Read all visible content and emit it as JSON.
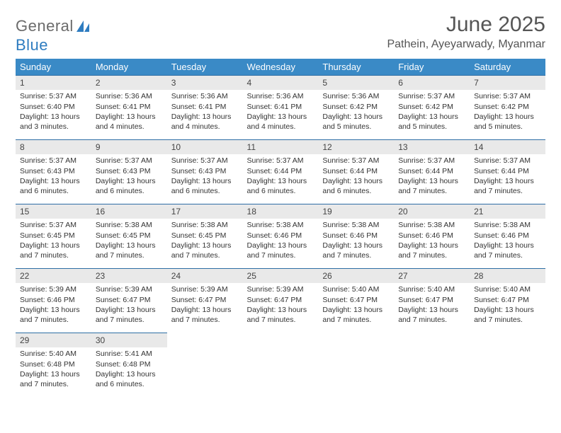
{
  "logo": {
    "word1": "General",
    "word2": "Blue"
  },
  "title": "June 2025",
  "location": "Pathein, Ayeyarwady, Myanmar",
  "colors": {
    "header_bg": "#3a8ac6",
    "header_text": "#ffffff",
    "daynum_bg": "#e9e9e9",
    "daynum_border": "#2e6ea5",
    "body_text": "#333333",
    "title_text": "#555555",
    "logo_gray": "#6b6b6b",
    "logo_blue": "#2e7cc0"
  },
  "weekdays": [
    "Sunday",
    "Monday",
    "Tuesday",
    "Wednesday",
    "Thursday",
    "Friday",
    "Saturday"
  ],
  "weeks": [
    [
      {
        "n": "1",
        "sr": "Sunrise: 5:37 AM",
        "ss": "Sunset: 6:40 PM",
        "d1": "Daylight: 13 hours",
        "d2": "and 3 minutes."
      },
      {
        "n": "2",
        "sr": "Sunrise: 5:36 AM",
        "ss": "Sunset: 6:41 PM",
        "d1": "Daylight: 13 hours",
        "d2": "and 4 minutes."
      },
      {
        "n": "3",
        "sr": "Sunrise: 5:36 AM",
        "ss": "Sunset: 6:41 PM",
        "d1": "Daylight: 13 hours",
        "d2": "and 4 minutes."
      },
      {
        "n": "4",
        "sr": "Sunrise: 5:36 AM",
        "ss": "Sunset: 6:41 PM",
        "d1": "Daylight: 13 hours",
        "d2": "and 4 minutes."
      },
      {
        "n": "5",
        "sr": "Sunrise: 5:36 AM",
        "ss": "Sunset: 6:42 PM",
        "d1": "Daylight: 13 hours",
        "d2": "and 5 minutes."
      },
      {
        "n": "6",
        "sr": "Sunrise: 5:37 AM",
        "ss": "Sunset: 6:42 PM",
        "d1": "Daylight: 13 hours",
        "d2": "and 5 minutes."
      },
      {
        "n": "7",
        "sr": "Sunrise: 5:37 AM",
        "ss": "Sunset: 6:42 PM",
        "d1": "Daylight: 13 hours",
        "d2": "and 5 minutes."
      }
    ],
    [
      {
        "n": "8",
        "sr": "Sunrise: 5:37 AM",
        "ss": "Sunset: 6:43 PM",
        "d1": "Daylight: 13 hours",
        "d2": "and 6 minutes."
      },
      {
        "n": "9",
        "sr": "Sunrise: 5:37 AM",
        "ss": "Sunset: 6:43 PM",
        "d1": "Daylight: 13 hours",
        "d2": "and 6 minutes."
      },
      {
        "n": "10",
        "sr": "Sunrise: 5:37 AM",
        "ss": "Sunset: 6:43 PM",
        "d1": "Daylight: 13 hours",
        "d2": "and 6 minutes."
      },
      {
        "n": "11",
        "sr": "Sunrise: 5:37 AM",
        "ss": "Sunset: 6:44 PM",
        "d1": "Daylight: 13 hours",
        "d2": "and 6 minutes."
      },
      {
        "n": "12",
        "sr": "Sunrise: 5:37 AM",
        "ss": "Sunset: 6:44 PM",
        "d1": "Daylight: 13 hours",
        "d2": "and 6 minutes."
      },
      {
        "n": "13",
        "sr": "Sunrise: 5:37 AM",
        "ss": "Sunset: 6:44 PM",
        "d1": "Daylight: 13 hours",
        "d2": "and 7 minutes."
      },
      {
        "n": "14",
        "sr": "Sunrise: 5:37 AM",
        "ss": "Sunset: 6:44 PM",
        "d1": "Daylight: 13 hours",
        "d2": "and 7 minutes."
      }
    ],
    [
      {
        "n": "15",
        "sr": "Sunrise: 5:37 AM",
        "ss": "Sunset: 6:45 PM",
        "d1": "Daylight: 13 hours",
        "d2": "and 7 minutes."
      },
      {
        "n": "16",
        "sr": "Sunrise: 5:38 AM",
        "ss": "Sunset: 6:45 PM",
        "d1": "Daylight: 13 hours",
        "d2": "and 7 minutes."
      },
      {
        "n": "17",
        "sr": "Sunrise: 5:38 AM",
        "ss": "Sunset: 6:45 PM",
        "d1": "Daylight: 13 hours",
        "d2": "and 7 minutes."
      },
      {
        "n": "18",
        "sr": "Sunrise: 5:38 AM",
        "ss": "Sunset: 6:46 PM",
        "d1": "Daylight: 13 hours",
        "d2": "and 7 minutes."
      },
      {
        "n": "19",
        "sr": "Sunrise: 5:38 AM",
        "ss": "Sunset: 6:46 PM",
        "d1": "Daylight: 13 hours",
        "d2": "and 7 minutes."
      },
      {
        "n": "20",
        "sr": "Sunrise: 5:38 AM",
        "ss": "Sunset: 6:46 PM",
        "d1": "Daylight: 13 hours",
        "d2": "and 7 minutes."
      },
      {
        "n": "21",
        "sr": "Sunrise: 5:38 AM",
        "ss": "Sunset: 6:46 PM",
        "d1": "Daylight: 13 hours",
        "d2": "and 7 minutes."
      }
    ],
    [
      {
        "n": "22",
        "sr": "Sunrise: 5:39 AM",
        "ss": "Sunset: 6:46 PM",
        "d1": "Daylight: 13 hours",
        "d2": "and 7 minutes."
      },
      {
        "n": "23",
        "sr": "Sunrise: 5:39 AM",
        "ss": "Sunset: 6:47 PM",
        "d1": "Daylight: 13 hours",
        "d2": "and 7 minutes."
      },
      {
        "n": "24",
        "sr": "Sunrise: 5:39 AM",
        "ss": "Sunset: 6:47 PM",
        "d1": "Daylight: 13 hours",
        "d2": "and 7 minutes."
      },
      {
        "n": "25",
        "sr": "Sunrise: 5:39 AM",
        "ss": "Sunset: 6:47 PM",
        "d1": "Daylight: 13 hours",
        "d2": "and 7 minutes."
      },
      {
        "n": "26",
        "sr": "Sunrise: 5:40 AM",
        "ss": "Sunset: 6:47 PM",
        "d1": "Daylight: 13 hours",
        "d2": "and 7 minutes."
      },
      {
        "n": "27",
        "sr": "Sunrise: 5:40 AM",
        "ss": "Sunset: 6:47 PM",
        "d1": "Daylight: 13 hours",
        "d2": "and 7 minutes."
      },
      {
        "n": "28",
        "sr": "Sunrise: 5:40 AM",
        "ss": "Sunset: 6:47 PM",
        "d1": "Daylight: 13 hours",
        "d2": "and 7 minutes."
      }
    ],
    [
      {
        "n": "29",
        "sr": "Sunrise: 5:40 AM",
        "ss": "Sunset: 6:48 PM",
        "d1": "Daylight: 13 hours",
        "d2": "and 7 minutes."
      },
      {
        "n": "30",
        "sr": "Sunrise: 5:41 AM",
        "ss": "Sunset: 6:48 PM",
        "d1": "Daylight: 13 hours",
        "d2": "and 6 minutes."
      },
      null,
      null,
      null,
      null,
      null
    ]
  ]
}
